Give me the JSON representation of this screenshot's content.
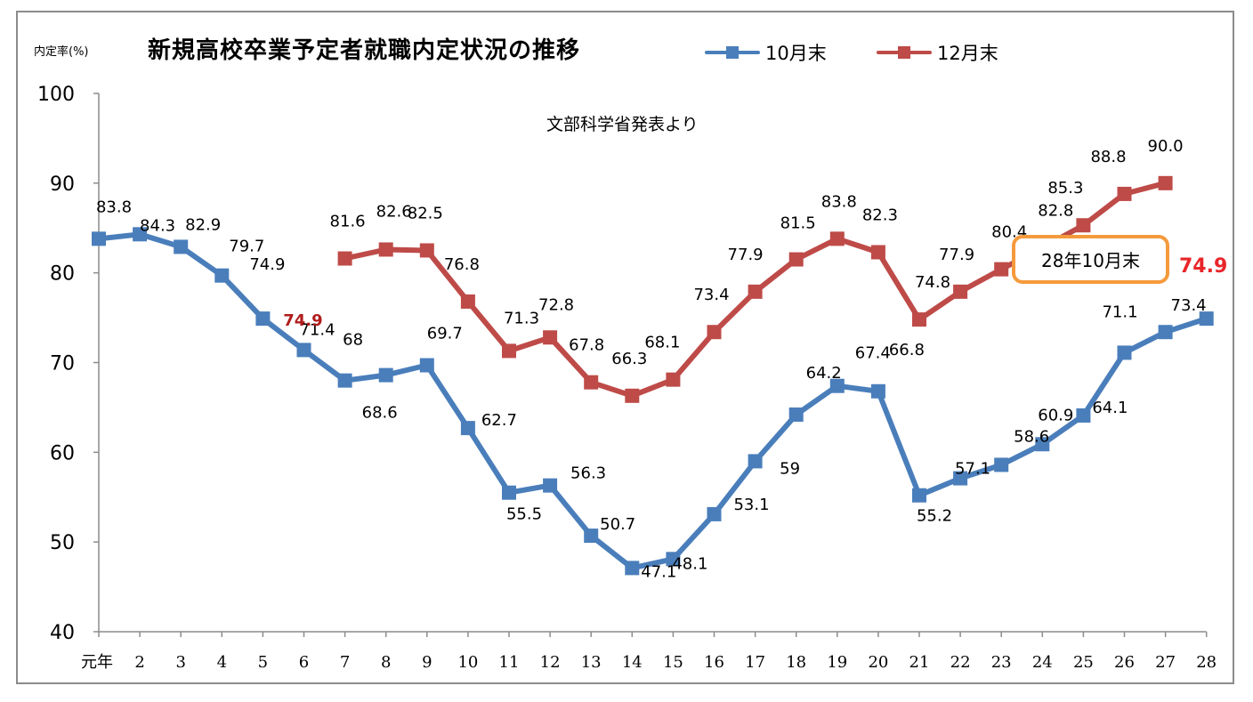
{
  "chart_data": {
    "type": "line",
    "title": "新規高校卒業予定者就職内定状況の推移",
    "ylabel": "内定率(%)",
    "source_note": "文部科学省発表より",
    "ylim": [
      40,
      100
    ],
    "yticks": [
      40,
      50,
      60,
      70,
      80,
      90,
      100
    ],
    "categories": [
      "元年",
      "2",
      "3",
      "4",
      "5",
      "6",
      "7",
      "8",
      "9",
      "10",
      "11",
      "12",
      "13",
      "14",
      "15",
      "16",
      "17",
      "18",
      "19",
      "20",
      "21",
      "22",
      "23",
      "24",
      "25",
      "26",
      "27",
      "28"
    ],
    "series": [
      {
        "name": "10月末",
        "color": "#4a7ebb",
        "values": [
          83.8,
          84.3,
          82.9,
          79.7,
          74.9,
          71.4,
          68,
          68.6,
          69.7,
          62.7,
          55.5,
          56.3,
          50.7,
          47.1,
          48.1,
          53.1,
          59,
          64.2,
          67.4,
          66.8,
          55.2,
          57.1,
          58.6,
          60.9,
          64.1,
          71.1,
          73.4,
          74.9
        ],
        "labels": [
          "83.8",
          "84.3",
          "82.9",
          "79.7",
          "74.9",
          "71.4",
          "68",
          "68.6",
          "69.7",
          "62.7",
          "55.5",
          "56.3",
          "50.7",
          "47.1",
          "48.1",
          "53.1",
          "59",
          "64.2",
          "67.4",
          "66.8",
          "55.2",
          "57.1",
          "58.6",
          "60.9",
          "64.1",
          "71.1",
          "73.4",
          ""
        ]
      },
      {
        "name": "12月末",
        "color": "#be4b48",
        "values": [
          null,
          null,
          null,
          null,
          null,
          null,
          81.6,
          82.6,
          82.5,
          76.8,
          71.3,
          72.8,
          67.8,
          66.3,
          68.1,
          73.4,
          77.9,
          81.5,
          83.8,
          82.3,
          74.8,
          77.9,
          80.4,
          82.8,
          85.3,
          88.8,
          90.0,
          null
        ],
        "labels": [
          "",
          "",
          "",
          "",
          "",
          "",
          "81.6",
          "82.6",
          "82.5",
          "76.8",
          "71.3",
          "72.8",
          "67.8",
          "66.3",
          "68.1",
          "73.4",
          "77.9",
          "81.5",
          "83.8",
          "82.3",
          "74.8",
          "77.9",
          "80.4",
          "82.8",
          "85.3",
          "88.8",
          "90.0",
          ""
        ]
      }
    ],
    "annotations": {
      "callout_text": "28年10月末",
      "callout_value": "74.9",
      "callout_color": "#e8262a",
      "highlight_value_6": "74.9",
      "highlight_color_6": "#b01c1c"
    },
    "legend_position": "top",
    "grid": false
  }
}
